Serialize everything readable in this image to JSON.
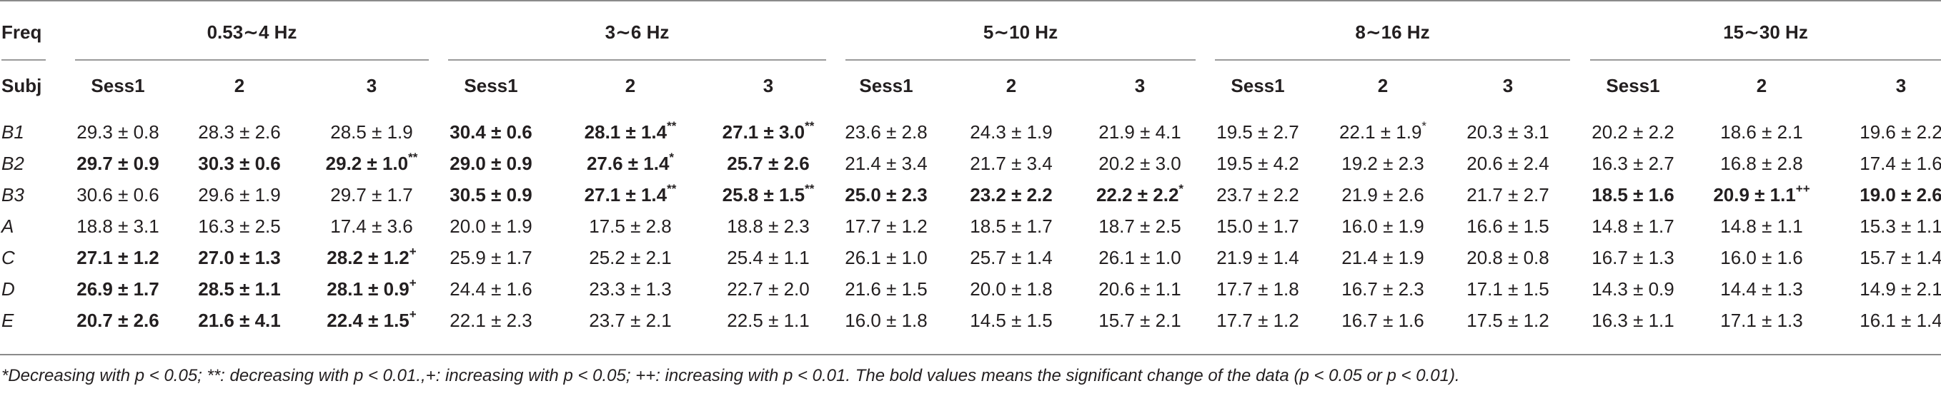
{
  "header": {
    "freq_label": "Freq",
    "subj_label": "Subj",
    "groups": [
      "0.53∼4 Hz",
      "3∼6 Hz",
      "5∼10 Hz",
      "8∼16 Hz",
      "15∼30 Hz"
    ],
    "sessions": [
      "Sess1",
      "2",
      "3"
    ]
  },
  "rows": [
    {
      "subj": "B1",
      "cells": [
        {
          "v": "29.3 ± 0.8",
          "b": false,
          "s": ""
        },
        {
          "v": "28.3 ± 2.6",
          "b": false,
          "s": ""
        },
        {
          "v": "28.5 ± 1.9",
          "b": false,
          "s": ""
        },
        {
          "v": "30.4 ± 0.6",
          "b": true,
          "s": ""
        },
        {
          "v": "28.1 ± 1.4",
          "b": true,
          "s": "**"
        },
        {
          "v": "27.1 ± 3.0",
          "b": true,
          "s": "**"
        },
        {
          "v": "23.6 ± 2.8",
          "b": false,
          "s": ""
        },
        {
          "v": "24.3 ± 1.9",
          "b": false,
          "s": ""
        },
        {
          "v": "21.9 ± 4.1",
          "b": false,
          "s": ""
        },
        {
          "v": "19.5 ± 2.7",
          "b": false,
          "s": ""
        },
        {
          "v": "22.1 ± 1.9",
          "b": false,
          "s": "*"
        },
        {
          "v": "20.3 ± 3.1",
          "b": false,
          "s": ""
        },
        {
          "v": "20.2 ± 2.2",
          "b": false,
          "s": ""
        },
        {
          "v": "18.6 ± 2.1",
          "b": false,
          "s": ""
        },
        {
          "v": "19.6 ± 2.2",
          "b": false,
          "s": ""
        }
      ]
    },
    {
      "subj": "B2",
      "cells": [
        {
          "v": "29.7 ± 0.9",
          "b": true,
          "s": ""
        },
        {
          "v": "30.3 ± 0.6",
          "b": true,
          "s": ""
        },
        {
          "v": "29.2 ± 1.0",
          "b": true,
          "s": "**"
        },
        {
          "v": "29.0 ± 0.9",
          "b": true,
          "s": ""
        },
        {
          "v": "27.6 ± 1.4",
          "b": true,
          "s": "*"
        },
        {
          "v": "25.7 ± 2.6",
          "b": true,
          "s": ""
        },
        {
          "v": "21.4 ± 3.4",
          "b": false,
          "s": ""
        },
        {
          "v": "21.7 ± 3.4",
          "b": false,
          "s": ""
        },
        {
          "v": "20.2 ± 3.0",
          "b": false,
          "s": ""
        },
        {
          "v": "19.5 ± 4.2",
          "b": false,
          "s": ""
        },
        {
          "v": "19.2 ± 2.3",
          "b": false,
          "s": ""
        },
        {
          "v": "20.6 ± 2.4",
          "b": false,
          "s": ""
        },
        {
          "v": "16.3 ± 2.7",
          "b": false,
          "s": ""
        },
        {
          "v": "16.8 ± 2.8",
          "b": false,
          "s": ""
        },
        {
          "v": "17.4 ± 1.6",
          "b": false,
          "s": ""
        }
      ]
    },
    {
      "subj": "B3",
      "cells": [
        {
          "v": "30.6 ± 0.6",
          "b": false,
          "s": ""
        },
        {
          "v": "29.6 ± 1.9",
          "b": false,
          "s": ""
        },
        {
          "v": "29.7 ± 1.7",
          "b": false,
          "s": ""
        },
        {
          "v": "30.5 ± 0.9",
          "b": true,
          "s": ""
        },
        {
          "v": "27.1 ± 1.4",
          "b": true,
          "s": "**"
        },
        {
          "v": "25.8 ± 1.5",
          "b": true,
          "s": "**"
        },
        {
          "v": "25.0 ± 2.3",
          "b": true,
          "s": ""
        },
        {
          "v": "23.2 ± 2.2",
          "b": true,
          "s": ""
        },
        {
          "v": "22.2 ± 2.2",
          "b": true,
          "s": "*"
        },
        {
          "v": "23.7 ± 2.2",
          "b": false,
          "s": ""
        },
        {
          "v": "21.9 ± 2.6",
          "b": false,
          "s": ""
        },
        {
          "v": "21.7 ± 2.7",
          "b": false,
          "s": ""
        },
        {
          "v": "18.5 ± 1.6",
          "b": true,
          "s": ""
        },
        {
          "v": "20.9 ± 1.1",
          "b": true,
          "s": "++"
        },
        {
          "v": "19.0 ± 2.6",
          "b": true,
          "s": ""
        }
      ]
    },
    {
      "subj": "A",
      "cells": [
        {
          "v": "18.8 ± 3.1",
          "b": false,
          "s": ""
        },
        {
          "v": "16.3 ± 2.5",
          "b": false,
          "s": ""
        },
        {
          "v": "17.4 ± 3.6",
          "b": false,
          "s": ""
        },
        {
          "v": "20.0 ± 1.9",
          "b": false,
          "s": ""
        },
        {
          "v": "17.5 ± 2.8",
          "b": false,
          "s": ""
        },
        {
          "v": "18.8 ± 2.3",
          "b": false,
          "s": ""
        },
        {
          "v": "17.7 ± 1.2",
          "b": false,
          "s": ""
        },
        {
          "v": "18.5 ± 1.7",
          "b": false,
          "s": ""
        },
        {
          "v": "18.7 ± 2.5",
          "b": false,
          "s": ""
        },
        {
          "v": "15.0 ± 1.7",
          "b": false,
          "s": ""
        },
        {
          "v": "16.0 ± 1.9",
          "b": false,
          "s": ""
        },
        {
          "v": "16.6 ± 1.5",
          "b": false,
          "s": ""
        },
        {
          "v": "14.8 ± 1.7",
          "b": false,
          "s": ""
        },
        {
          "v": "14.8 ± 1.1",
          "b": false,
          "s": ""
        },
        {
          "v": "15.3 ± 1.1",
          "b": false,
          "s": ""
        }
      ]
    },
    {
      "subj": "C",
      "cells": [
        {
          "v": "27.1 ± 1.2",
          "b": true,
          "s": ""
        },
        {
          "v": "27.0 ± 1.3",
          "b": true,
          "s": ""
        },
        {
          "v": "28.2 ± 1.2",
          "b": true,
          "s": "+"
        },
        {
          "v": "25.9 ± 1.7",
          "b": false,
          "s": ""
        },
        {
          "v": "25.2 ± 2.1",
          "b": false,
          "s": ""
        },
        {
          "v": "25.4 ± 1.1",
          "b": false,
          "s": ""
        },
        {
          "v": "26.1 ± 1.0",
          "b": false,
          "s": ""
        },
        {
          "v": "25.7 ± 1.4",
          "b": false,
          "s": ""
        },
        {
          "v": "26.1 ± 1.0",
          "b": false,
          "s": ""
        },
        {
          "v": "21.9 ± 1.4",
          "b": false,
          "s": ""
        },
        {
          "v": "21.4 ± 1.9",
          "b": false,
          "s": ""
        },
        {
          "v": "20.8 ± 0.8",
          "b": false,
          "s": ""
        },
        {
          "v": "16.7 ± 1.3",
          "b": false,
          "s": ""
        },
        {
          "v": "16.0 ± 1.6",
          "b": false,
          "s": ""
        },
        {
          "v": "15.7 ± 1.4",
          "b": false,
          "s": ""
        }
      ]
    },
    {
      "subj": "D",
      "cells": [
        {
          "v": "26.9 ± 1.7",
          "b": true,
          "s": ""
        },
        {
          "v": "28.5 ± 1.1",
          "b": true,
          "s": ""
        },
        {
          "v": "28.1 ± 0.9",
          "b": true,
          "s": "+"
        },
        {
          "v": "24.4 ± 1.6",
          "b": false,
          "s": ""
        },
        {
          "v": "23.3 ± 1.3",
          "b": false,
          "s": ""
        },
        {
          "v": "22.7 ± 2.0",
          "b": false,
          "s": ""
        },
        {
          "v": "21.6 ± 1.5",
          "b": false,
          "s": ""
        },
        {
          "v": "20.0 ± 1.8",
          "b": false,
          "s": ""
        },
        {
          "v": "20.6 ± 1.1",
          "b": false,
          "s": ""
        },
        {
          "v": "17.7 ± 1.8",
          "b": false,
          "s": ""
        },
        {
          "v": "16.7 ± 2.3",
          "b": false,
          "s": ""
        },
        {
          "v": "17.1 ± 1.5",
          "b": false,
          "s": ""
        },
        {
          "v": "14.3 ± 0.9",
          "b": false,
          "s": ""
        },
        {
          "v": "14.4 ± 1.3",
          "b": false,
          "s": ""
        },
        {
          "v": "14.9 ± 2.1",
          "b": false,
          "s": ""
        }
      ]
    },
    {
      "subj": "E",
      "cells": [
        {
          "v": "20.7 ± 2.6",
          "b": true,
          "s": ""
        },
        {
          "v": "21.6 ± 4.1",
          "b": true,
          "s": ""
        },
        {
          "v": "22.4 ± 1.5",
          "b": true,
          "s": "+"
        },
        {
          "v": "22.1 ± 2.3",
          "b": false,
          "s": ""
        },
        {
          "v": "23.7 ± 2.1",
          "b": false,
          "s": ""
        },
        {
          "v": "22.5 ± 1.1",
          "b": false,
          "s": ""
        },
        {
          "v": "16.0 ± 1.8",
          "b": false,
          "s": ""
        },
        {
          "v": "14.5 ± 1.5",
          "b": false,
          "s": ""
        },
        {
          "v": "15.7 ± 2.1",
          "b": false,
          "s": ""
        },
        {
          "v": "17.7 ± 1.2",
          "b": false,
          "s": ""
        },
        {
          "v": "16.7 ± 1.6",
          "b": false,
          "s": ""
        },
        {
          "v": "17.5 ± 1.2",
          "b": false,
          "s": ""
        },
        {
          "v": "16.3 ± 1.1",
          "b": false,
          "s": ""
        },
        {
          "v": "17.1 ± 1.3",
          "b": false,
          "s": ""
        },
        {
          "v": "16.1 ± 1.4",
          "b": false,
          "s": ""
        }
      ]
    }
  ],
  "footnote": "*Decreasing with p < 0.05; **: decreasing with p < 0.01.,+: increasing with p < 0.05; ++: increasing with p < 0.01. The bold values means the significant change of the data (p < 0.05 or p < 0.01)."
}
